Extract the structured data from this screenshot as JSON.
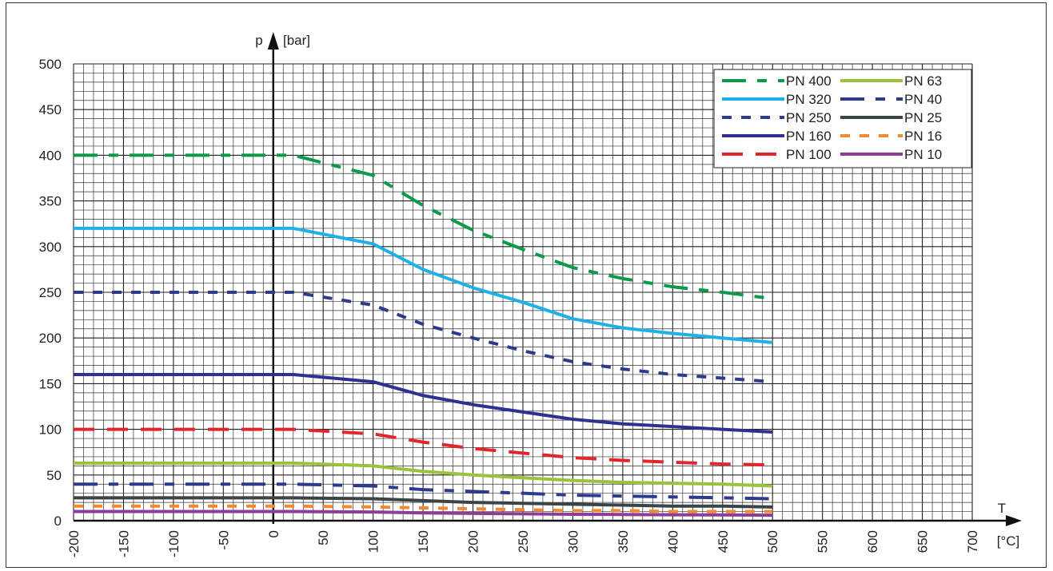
{
  "chart_data": {
    "type": "line",
    "xlabel": "T",
    "xunit": "[°C]",
    "ylabel": "p",
    "yunit": "[bar]",
    "xlim": [
      -200,
      700
    ],
    "ylim": [
      0,
      500
    ],
    "grid": true,
    "x_ticks": [
      -200,
      -150,
      -100,
      -50,
      0,
      50,
      100,
      150,
      200,
      250,
      300,
      350,
      400,
      450,
      500,
      550,
      600,
      650,
      700
    ],
    "y_ticks": [
      0,
      50,
      100,
      150,
      200,
      250,
      300,
      350,
      400,
      450,
      500
    ],
    "legend_position": "top-right",
    "series": [
      {
        "name": "PN 400",
        "color": "#0a9a49",
        "dash": "long-short",
        "x": [
          -200,
          20,
          100,
          150,
          200,
          250,
          300,
          350,
          400,
          450,
          500
        ],
        "y": [
          400,
          400,
          378,
          345,
          318,
          297,
          277,
          265,
          256,
          250,
          243
        ]
      },
      {
        "name": "PN 320",
        "color": "#1eb1e8",
        "dash": "solid",
        "x": [
          -200,
          20,
          100,
          150,
          200,
          250,
          300,
          350,
          400,
          450,
          500
        ],
        "y": [
          320,
          320,
          303,
          275,
          255,
          239,
          221,
          211,
          205,
          200,
          195
        ]
      },
      {
        "name": "PN 250",
        "color": "#2e3b8c",
        "dash": "short",
        "x": [
          -200,
          20,
          100,
          150,
          200,
          250,
          300,
          350,
          400,
          450,
          500
        ],
        "y": [
          250,
          250,
          236,
          215,
          200,
          186,
          174,
          166,
          160,
          156,
          152
        ]
      },
      {
        "name": "PN 160",
        "color": "#2e3192",
        "dash": "solid",
        "x": [
          -200,
          20,
          100,
          150,
          200,
          250,
          300,
          350,
          400,
          450,
          500
        ],
        "y": [
          160,
          160,
          152,
          137,
          127,
          119,
          111,
          106,
          103,
          100,
          97
        ]
      },
      {
        "name": "PN 100",
        "color": "#e3262b",
        "dash": "long",
        "x": [
          -200,
          20,
          100,
          150,
          200,
          250,
          300,
          350,
          400,
          450,
          500
        ],
        "y": [
          100,
          100,
          95,
          86,
          79,
          74,
          69,
          66,
          64,
          62,
          61
        ]
      },
      {
        "name": "PN 63",
        "color": "#9bc23c",
        "dash": "solid",
        "x": [
          -200,
          20,
          100,
          150,
          200,
          250,
          300,
          350,
          400,
          450,
          500
        ],
        "y": [
          63,
          63,
          60,
          54,
          50,
          47,
          44,
          42,
          41,
          40,
          38
        ]
      },
      {
        "name": "PN 40",
        "color": "#2e3b8c",
        "dash": "long-short",
        "x": [
          -200,
          20,
          100,
          150,
          200,
          250,
          300,
          350,
          400,
          450,
          500
        ],
        "y": [
          40,
          40,
          38,
          34,
          32,
          30,
          28,
          27,
          26,
          25,
          24
        ]
      },
      {
        "name": "PN 25",
        "color": "#3a4448",
        "dash": "solid",
        "x": [
          -200,
          20,
          100,
          150,
          200,
          250,
          300,
          350,
          400,
          450,
          500
        ],
        "y": [
          25,
          25,
          24,
          22,
          20,
          19,
          18,
          17,
          16,
          16,
          15
        ]
      },
      {
        "name": "PN 16",
        "color": "#f08a30",
        "dash": "short",
        "x": [
          -200,
          20,
          100,
          150,
          200,
          250,
          300,
          350,
          400,
          450,
          500
        ],
        "y": [
          16,
          16,
          15,
          14,
          13,
          12,
          11,
          11,
          10,
          10,
          10
        ]
      },
      {
        "name": "PN 10",
        "color": "#8e3d96",
        "dash": "solid",
        "x": [
          -200,
          20,
          100,
          150,
          200,
          250,
          300,
          350,
          400,
          450,
          500
        ],
        "y": [
          10,
          10,
          9.5,
          8.5,
          8,
          7.5,
          7,
          6.8,
          6.5,
          6.3,
          6
        ]
      }
    ]
  }
}
